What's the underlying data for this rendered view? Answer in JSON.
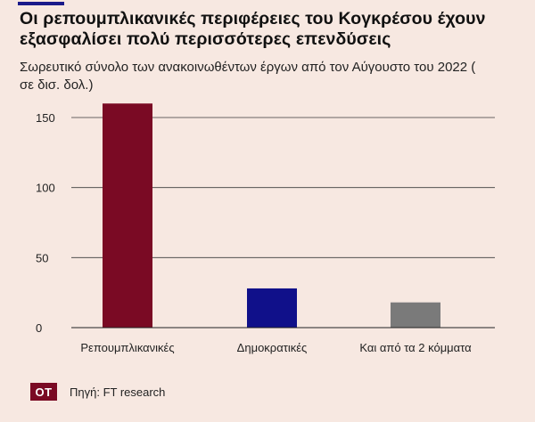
{
  "title": "Οι ρεπουμπλικανικές περιφέρειες του Κογκρέσου έχουν εξασφαλίσει πολύ περισσότερες επενδύσεις",
  "subtitle": "Σωρευτικό σύνολο των ανακοινωθέντων έργων από τον Αύγουστο του 2022 ( σε δισ. δολ.)",
  "footer": {
    "logo": "OT",
    "source": "Πηγή: FT research"
  },
  "colors": {
    "background": "#f7e8e1",
    "accent": "#1a1a8a",
    "logo": "#7a0a24"
  },
  "chart_data": {
    "type": "bar",
    "categories": [
      "Ρεπουμπλικανικές",
      "Δημοκρατικές",
      "Και από τα 2 κόμματα"
    ],
    "values": [
      160,
      28,
      18
    ],
    "bar_colors": [
      "#7a0a24",
      "#10108a",
      "#7a7a7a"
    ],
    "yticks": [
      0,
      50,
      100,
      150
    ],
    "ylim": [
      0,
      165
    ],
    "grid": true,
    "xlabel": "",
    "ylabel": ""
  }
}
